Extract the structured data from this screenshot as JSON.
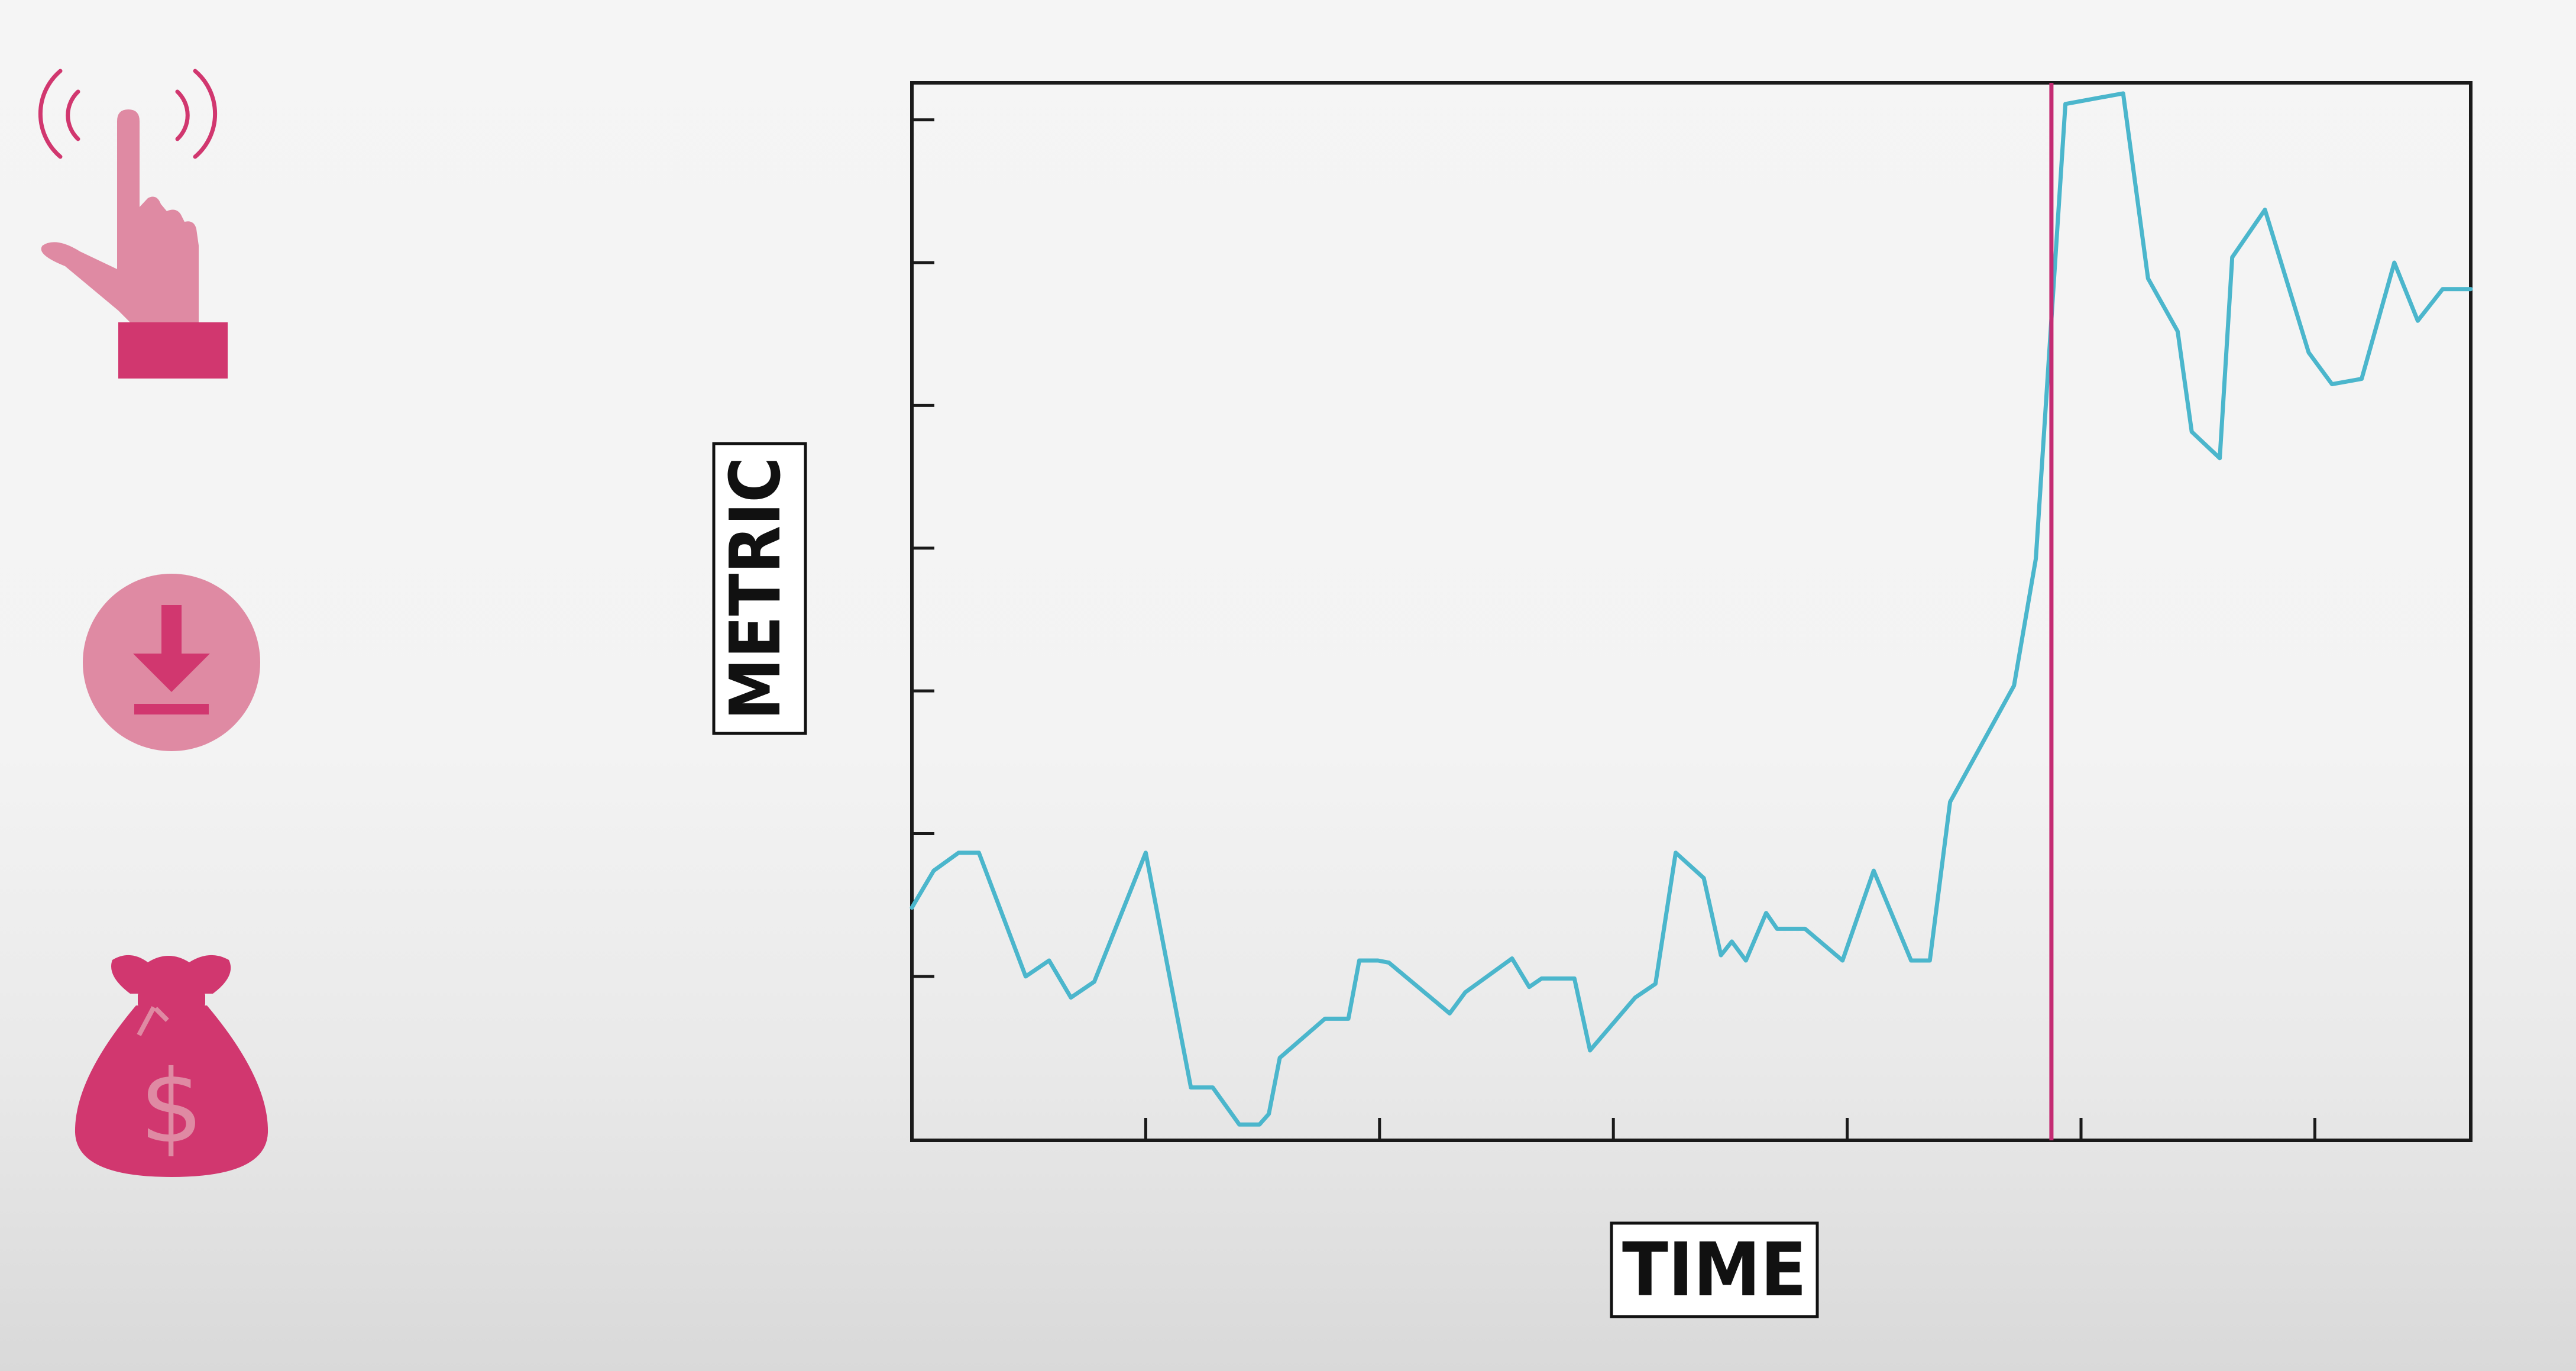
{
  "colors": {
    "accent": "#d1376f",
    "accent_light": "#df8aa3",
    "line": "#4bb6cc",
    "axis": "#1a1a1a",
    "marker": "#c42c73"
  },
  "icons": {
    "touch": "finger-touch-icon",
    "download": "download-icon",
    "money": "money-bag-icon",
    "money_symbol": "$"
  },
  "chart_data": {
    "type": "line",
    "xlabel": "TIME",
    "ylabel": "METRIC",
    "xlim": [
      0,
      100
    ],
    "ylim": [
      0,
      100
    ],
    "x_tick_values": [
      15,
      30,
      45,
      60,
      75,
      90
    ],
    "y_tick_values": [
      15.5,
      29,
      42.5,
      56,
      69.5,
      83,
      96.5
    ],
    "tick_labels_visible": false,
    "grid": false,
    "marker_x": 73.1,
    "series": [
      {
        "x": [
          0,
          1.4,
          3.0,
          4.3,
          7.3,
          8.8,
          10.2,
          11.7,
          15.0,
          17.9,
          19.3,
          21.0,
          22.3,
          22.9,
          23.6,
          26.5,
          28.0,
          28.7,
          29.9,
          30.6,
          34.5,
          35.5,
          38.5,
          39.6,
          40.4,
          42.5,
          43.5,
          46.4,
          47.7,
          49.0,
          50.8,
          51.9,
          52.6,
          53.5,
          54.8,
          55.5,
          57.3,
          59.7,
          61.7,
          64.1,
          65.3,
          66.6,
          70.7,
          72.1,
          74.0,
          77.7,
          79.3,
          81.2,
          82.1,
          83.9,
          84.7,
          86.8,
          89.6,
          91.1,
          93.0,
          95.1,
          96.6,
          98.2,
          100.0
        ],
        "y": [
          22,
          25.5,
          27.2,
          27.2,
          15.5,
          17,
          13.5,
          15,
          27.2,
          5,
          5,
          1.5,
          1.5,
          2.5,
          7.8,
          11.5,
          11.5,
          17,
          17,
          16.8,
          12,
          14,
          17.2,
          14.5,
          15.3,
          15.3,
          8.5,
          13.5,
          14.8,
          27.2,
          24.8,
          17.5,
          18.8,
          17,
          21.5,
          20,
          20,
          17,
          25.5,
          17,
          17,
          32,
          43,
          55,
          98,
          99,
          81.5,
          76.5,
          67,
          64.5,
          83.5,
          88,
          74.5,
          71.5,
          72,
          83,
          77.5,
          80.5,
          80.5
        ]
      }
    ]
  }
}
